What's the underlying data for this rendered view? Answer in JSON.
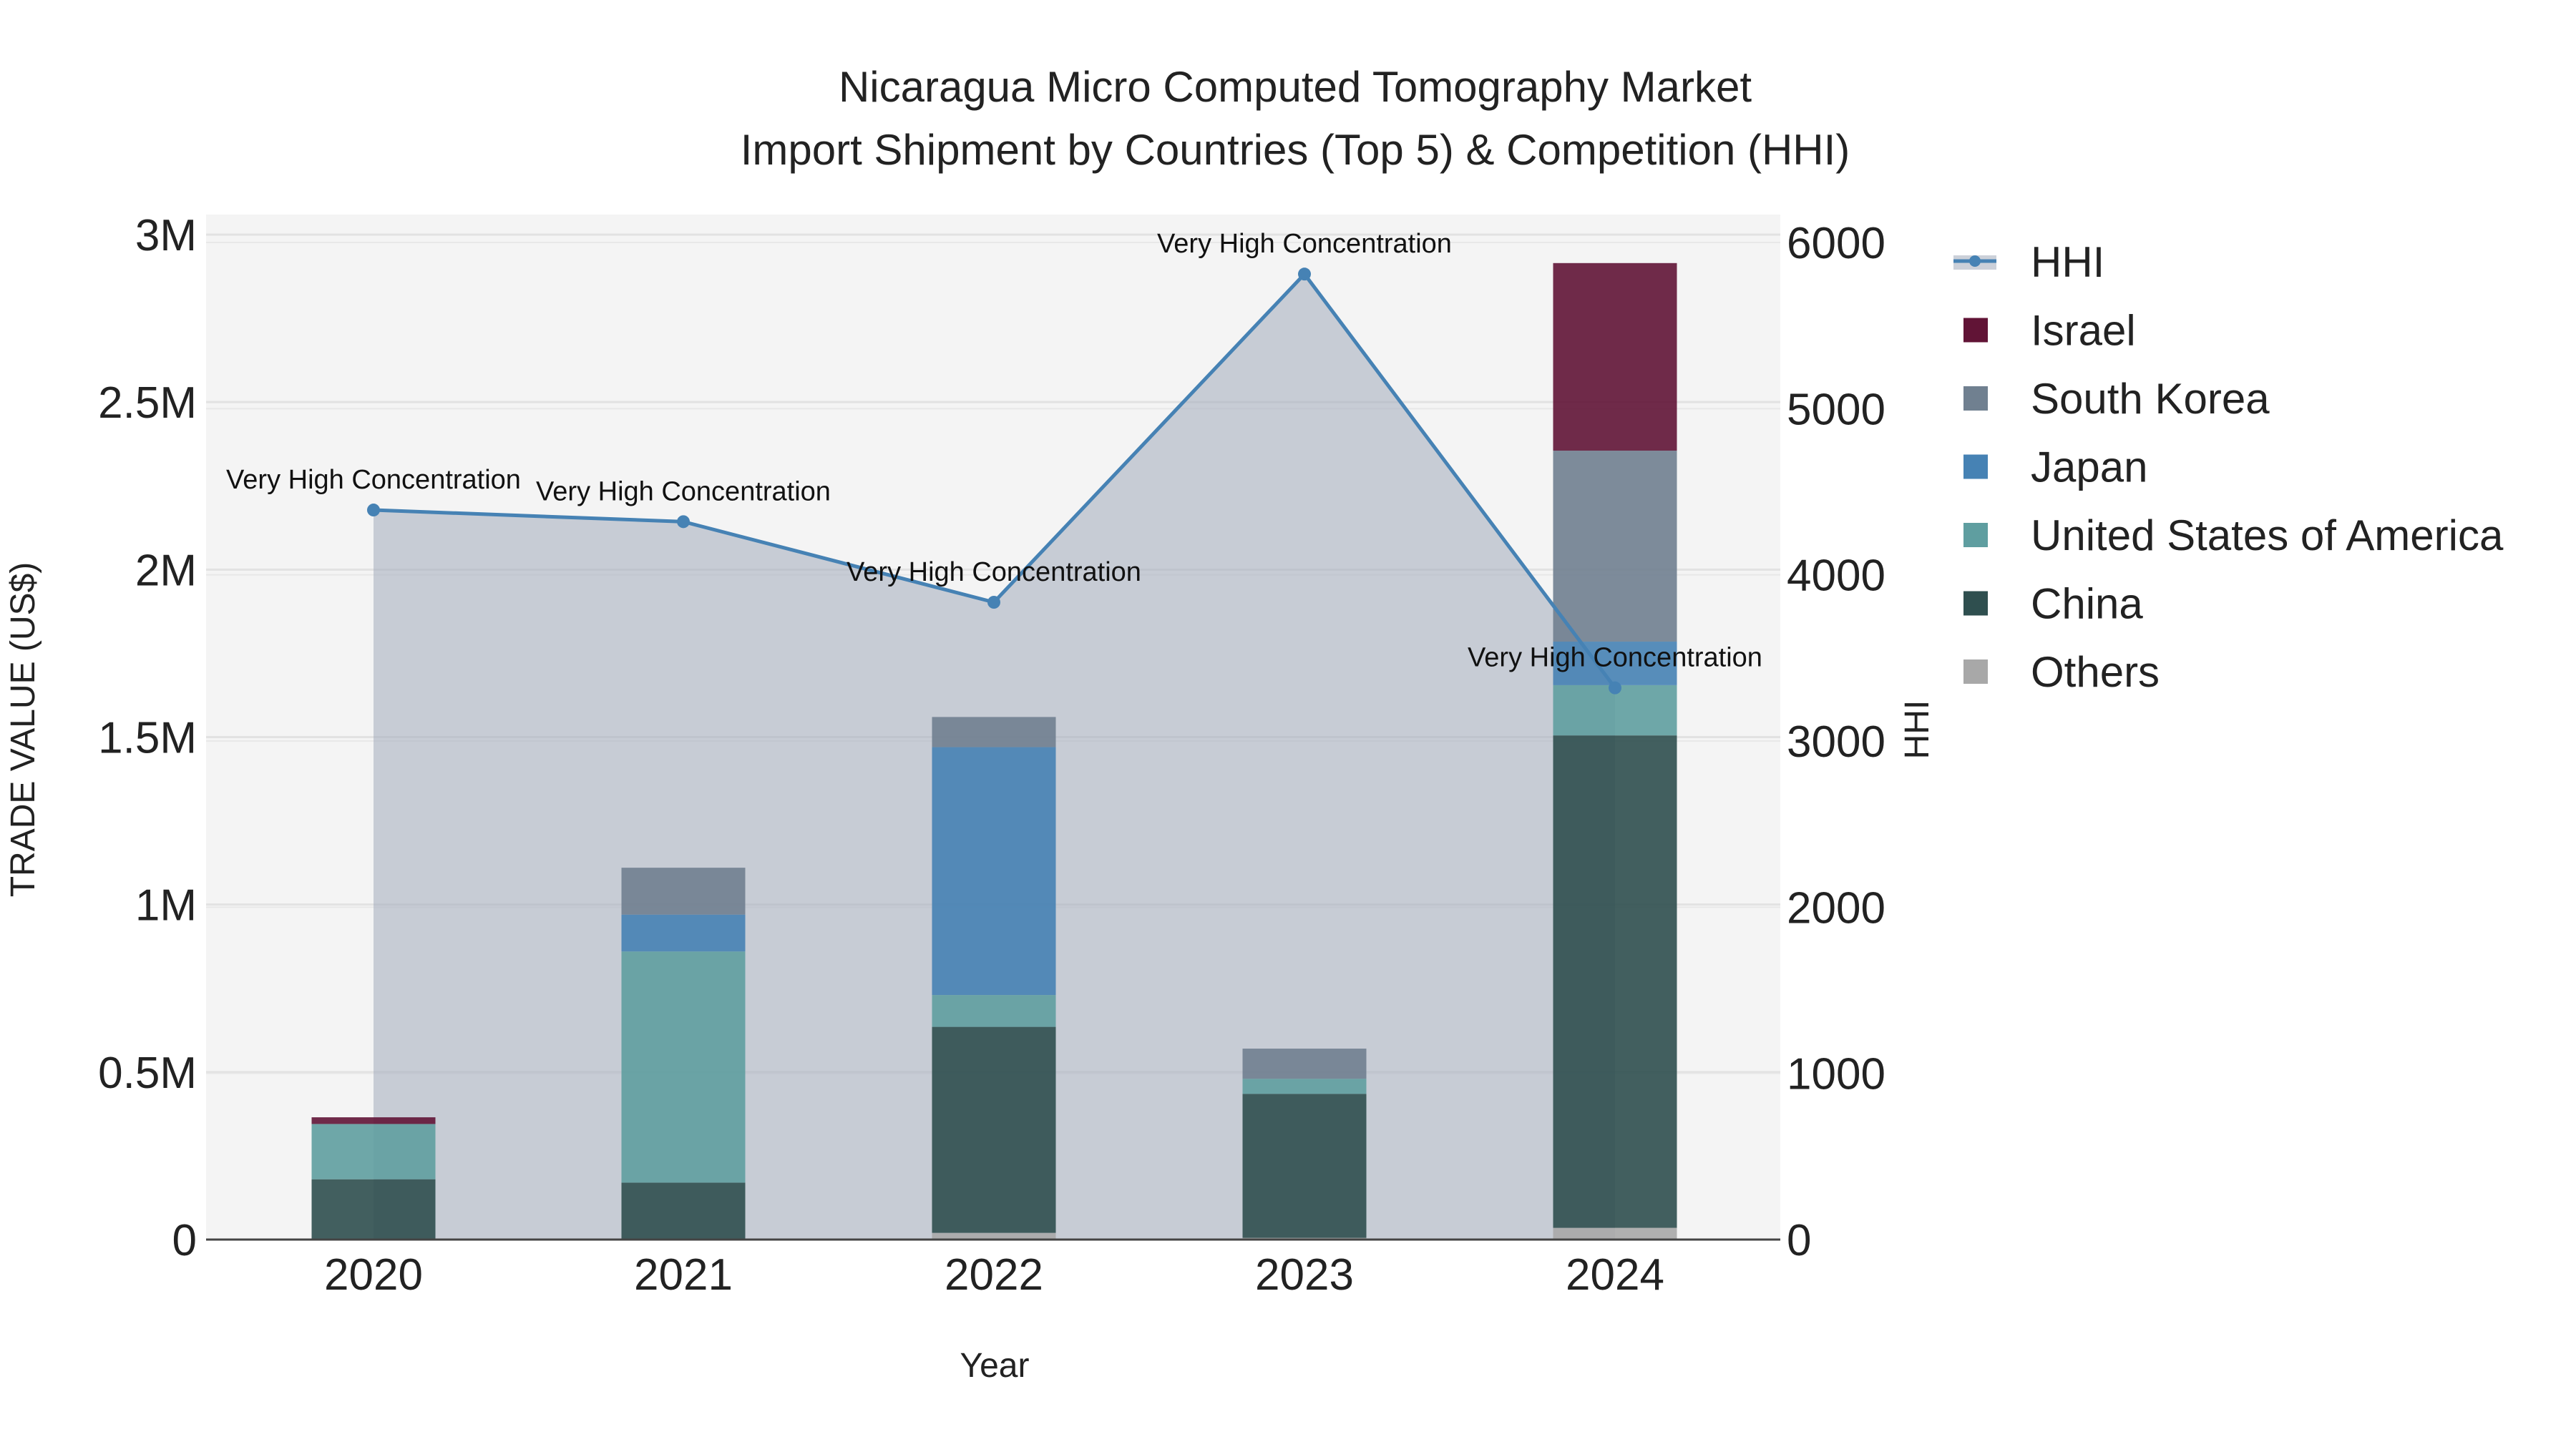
{
  "chart_data": {
    "type": "bar",
    "title_line1": "Nicaragua Micro Computed Tomography Market",
    "title_line2": "Import Shipment by Countries (Top 5) & Competition (HHI)",
    "xlabel": "Year",
    "ylabel": "TRADE VALUE (US$)",
    "y2label": "HHI",
    "categories": [
      "2020",
      "2021",
      "2022",
      "2023",
      "2024"
    ],
    "ylim": [
      0,
      3000000
    ],
    "y_ticks": [
      {
        "v": 0,
        "label": "0"
      },
      {
        "v": 500000,
        "label": "0.5M"
      },
      {
        "v": 1000000,
        "label": "1M"
      },
      {
        "v": 1500000,
        "label": "1.5M"
      },
      {
        "v": 2000000,
        "label": "2M"
      },
      {
        "v": 2500000,
        "label": "2.5M"
      },
      {
        "v": 3000000,
        "label": "3M"
      }
    ],
    "y2lim": [
      0,
      6000
    ],
    "y2_ticks": [
      {
        "v": 0,
        "label": "0"
      },
      {
        "v": 1000,
        "label": "1000"
      },
      {
        "v": 2000,
        "label": "2000"
      },
      {
        "v": 3000,
        "label": "3000"
      },
      {
        "v": 4000,
        "label": "4000"
      },
      {
        "v": 5000,
        "label": "5000"
      },
      {
        "v": 6000,
        "label": "6000"
      }
    ],
    "series": [
      {
        "name": "Others",
        "color": "#a8a8a8",
        "values": [
          0,
          0,
          20000,
          5000,
          35000
        ]
      },
      {
        "name": "China",
        "color": "#2f4f4f",
        "values": [
          180000,
          170000,
          615000,
          430000,
          1470000
        ]
      },
      {
        "name": "United States of America",
        "color": "#5f9ea0",
        "values": [
          165000,
          690000,
          95000,
          45000,
          150000
        ]
      },
      {
        "name": "Japan",
        "color": "#4682b4",
        "values": [
          0,
          110000,
          740000,
          0,
          130000
        ]
      },
      {
        "name": "South Korea",
        "color": "#708090",
        "values": [
          0,
          140000,
          90000,
          90000,
          570000
        ]
      },
      {
        "name": "Israel",
        "color": "#611436",
        "values": [
          20000,
          0,
          0,
          0,
          560000
        ]
      }
    ],
    "hhi": {
      "name": "HHI",
      "color": "#4682b4",
      "values": [
        4390,
        4320,
        3835,
        5810,
        3320
      ]
    },
    "annotations": [
      "Very High Concentration",
      "Very High Concentration",
      "Very High Concentration",
      "Very High Concentration",
      "Very High Concentration"
    ],
    "legend_order": [
      "HHI",
      "Israel",
      "South Korea",
      "Japan",
      "United States of America",
      "China",
      "Others"
    ],
    "legend_position": "right",
    "grid": true
  }
}
